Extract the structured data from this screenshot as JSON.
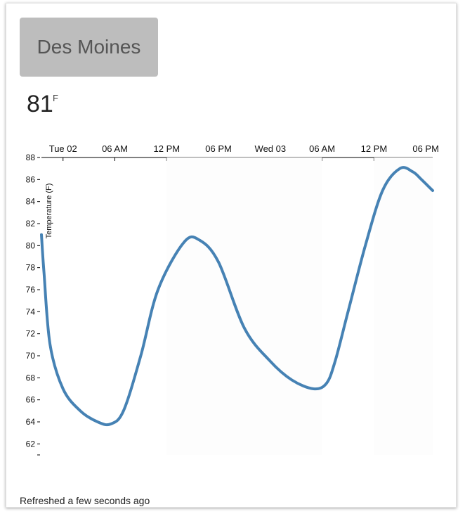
{
  "city": {
    "name": "Des Moines"
  },
  "current": {
    "temperature": "81",
    "unit": "F"
  },
  "footer": {
    "refreshed": "Refreshed a few seconds ago"
  },
  "colors": {
    "line": "#4682b4",
    "button_bg": "#bdbdbd"
  },
  "chart_data": {
    "type": "line",
    "title": "",
    "xlabel": "",
    "ylabel": "Temperature (F)",
    "x_axis_position": "top",
    "x_ticks": [
      "Tue 02",
      "06 AM",
      "12 PM",
      "06 PM",
      "Wed 03",
      "06 AM",
      "12 PM",
      "06 PM"
    ],
    "x_tick_hours": [
      0,
      6,
      12,
      18,
      24,
      30,
      36,
      42
    ],
    "xlim_hours": [
      -2.5,
      42.8
    ],
    "y_ticks": [
      62,
      64,
      66,
      68,
      70,
      72,
      74,
      76,
      78,
      80,
      82,
      84,
      86,
      88
    ],
    "ylim": [
      61,
      88
    ],
    "grid": false,
    "series": [
      {
        "hours": [
          -2.5,
          -2.2,
          -1.5,
          0,
          2,
          4,
          5.5,
          7,
          9,
          11,
          14,
          15.8,
          18,
          21,
          24,
          26.5,
          29,
          30.5,
          31.5,
          33,
          35,
          37,
          39,
          40.5,
          41.5,
          42.8
        ],
        "values": [
          81,
          77.5,
          71,
          67,
          65,
          64,
          63.8,
          65,
          70,
          76,
          80.3,
          80.5,
          78.5,
          72.5,
          69.5,
          67.8,
          67,
          67.5,
          69.5,
          74,
          80,
          85,
          87,
          86.7,
          86,
          85
        ]
      }
    ]
  }
}
